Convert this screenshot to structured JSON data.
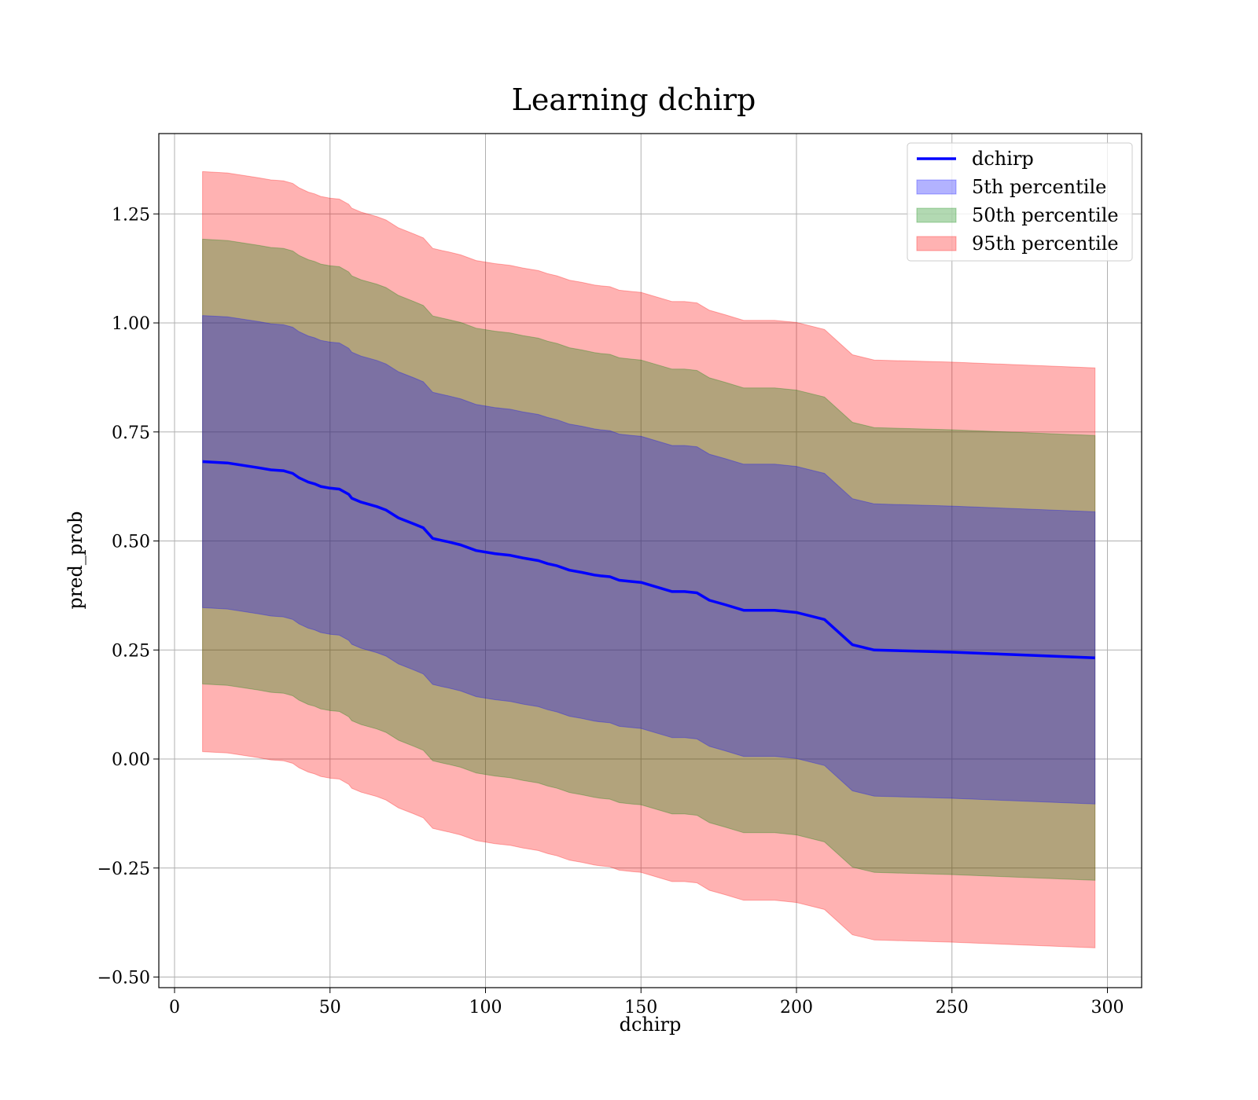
{
  "chart_data": {
    "type": "area",
    "title": "Learning dchirp",
    "xlabel": "dchirp",
    "ylabel": "pred_prob",
    "xlim": [
      -5,
      310
    ],
    "ylim": [
      -0.525,
      1.435
    ],
    "x_ticks": [
      0,
      50,
      100,
      150,
      200,
      250,
      300
    ],
    "x_tick_labels": [
      "0",
      "50",
      "100",
      "150",
      "200",
      "250",
      "300"
    ],
    "y_ticks": [
      -0.5,
      -0.25,
      0.0,
      0.25,
      0.5,
      0.75,
      1.0,
      1.25
    ],
    "y_tick_labels": [
      "−0.50",
      "−0.25",
      "0.00",
      "0.25",
      "0.50",
      "0.75",
      "1.00",
      "1.25"
    ],
    "grid": true,
    "legend_position": "top-right",
    "x": [
      9,
      17,
      27,
      31,
      35,
      38,
      40,
      43,
      45,
      47,
      50,
      53,
      56,
      57,
      60,
      65,
      68,
      72,
      77,
      80,
      83,
      86,
      88,
      92,
      97,
      103,
      108,
      112,
      117,
      120,
      123,
      127,
      131,
      135,
      137,
      140,
      143,
      147,
      150,
      160,
      164,
      168,
      172,
      177,
      183,
      193,
      200,
      209,
      218,
      225,
      250,
      296
    ],
    "series": [
      {
        "name": "dchirp",
        "kind": "line",
        "color": "#0000ff",
        "values": [
          0.682,
          0.679,
          0.668,
          0.663,
          0.661,
          0.655,
          0.645,
          0.635,
          0.631,
          0.625,
          0.621,
          0.619,
          0.607,
          0.598,
          0.589,
          0.579,
          0.571,
          0.553,
          0.539,
          0.53,
          0.506,
          0.501,
          0.498,
          0.491,
          0.478,
          0.471,
          0.467,
          0.461,
          0.455,
          0.448,
          0.443,
          0.433,
          0.428,
          0.422,
          0.42,
          0.418,
          0.41,
          0.407,
          0.405,
          0.384,
          0.384,
          0.381,
          0.364,
          0.354,
          0.341,
          0.341,
          0.336,
          0.32,
          0.262,
          0.25,
          0.245,
          0.232
        ]
      },
      {
        "name": "5th percentile",
        "kind": "band",
        "color": "#0000ff",
        "half_width": 0.335
      },
      {
        "name": "50th percentile",
        "kind": "band",
        "color": "#008000",
        "half_width": 0.51
      },
      {
        "name": "95th percentile",
        "kind": "band",
        "color": "#ff0000",
        "half_width": 0.665
      }
    ]
  }
}
